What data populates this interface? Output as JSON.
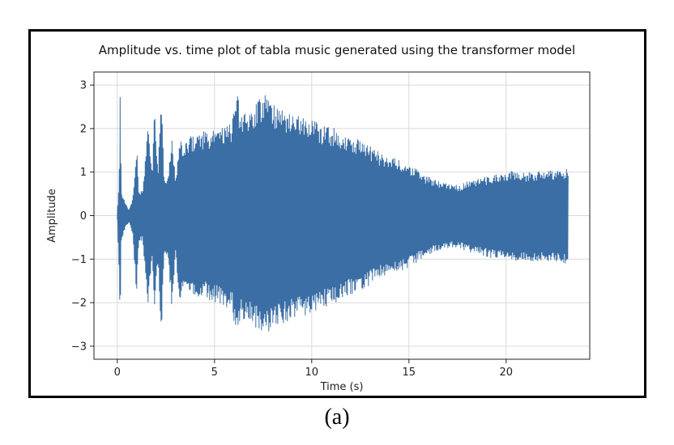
{
  "figure": {
    "caption": "(a)"
  },
  "chart_data": {
    "type": "line",
    "title": "Amplitude vs. time plot of tabla music generated using the transformer model",
    "xlabel": "Time (s)",
    "ylabel": "Amplitude",
    "xlim": [
      -1.2,
      24.3
    ],
    "ylim": [
      -3.3,
      3.3
    ],
    "xticks": [
      0,
      5,
      10,
      15,
      20
    ],
    "yticks": [
      -3,
      -2,
      -1,
      0,
      1,
      2,
      3
    ],
    "grid": true,
    "color": "#3a6ea5",
    "series": [
      {
        "name": "",
        "x": [
          0.0,
          0.1,
          0.15,
          0.2,
          0.4,
          0.6,
          0.8,
          1.0,
          1.1,
          1.3,
          1.6,
          1.8,
          1.9,
          2.1,
          2.25,
          2.4,
          2.6,
          2.8,
          3.0,
          3.2,
          3.5,
          3.8,
          4.1,
          4.4,
          4.7,
          5.0,
          5.3,
          5.6,
          5.9,
          6.2,
          6.3,
          6.5,
          6.8,
          7.0,
          7.3,
          7.6,
          7.8,
          8.0,
          8.5,
          9.0,
          9.5,
          10.0,
          10.5,
          11.0,
          11.5,
          12.0,
          12.5,
          13.0,
          13.5,
          14.0,
          14.5,
          15.0,
          15.5,
          16.0,
          16.5,
          17.0,
          17.5,
          18.0,
          18.5,
          19.0,
          19.5,
          20.0,
          20.5,
          21.0,
          21.5,
          22.0,
          22.5,
          23.0,
          23.2
        ],
        "upper": [
          0.1,
          1.0,
          3.0,
          0.6,
          0.3,
          0.15,
          0.45,
          1.6,
          0.6,
          0.55,
          2.2,
          0.9,
          2.55,
          1.1,
          3.0,
          1.0,
          0.85,
          1.95,
          0.8,
          1.8,
          1.7,
          1.85,
          1.85,
          1.95,
          1.95,
          2.0,
          2.0,
          2.05,
          2.15,
          3.0,
          2.35,
          2.4,
          2.45,
          2.5,
          2.7,
          2.8,
          2.65,
          2.55,
          2.45,
          2.35,
          2.25,
          2.2,
          2.1,
          2.05,
          1.95,
          1.85,
          1.75,
          1.6,
          1.45,
          1.4,
          1.3,
          1.2,
          1.05,
          0.9,
          0.8,
          0.75,
          0.7,
          0.8,
          0.85,
          0.9,
          0.95,
          1.0,
          1.05,
          1.0,
          1.0,
          1.05,
          1.05,
          1.05,
          1.1
        ],
        "lower": [
          -0.1,
          -1.5,
          -3.0,
          -0.7,
          -0.3,
          -0.15,
          -0.5,
          -1.9,
          -0.6,
          -0.6,
          -2.1,
          -0.9,
          -2.3,
          -1.1,
          -3.0,
          -1.05,
          -0.9,
          -2.1,
          -0.85,
          -2.0,
          -1.8,
          -1.8,
          -1.85,
          -1.9,
          -1.95,
          -2.0,
          -2.05,
          -2.1,
          -2.2,
          -3.05,
          -2.4,
          -2.45,
          -2.5,
          -2.55,
          -2.7,
          -2.8,
          -2.7,
          -2.6,
          -2.5,
          -2.45,
          -2.35,
          -2.25,
          -2.15,
          -2.05,
          -1.95,
          -1.85,
          -1.75,
          -1.6,
          -1.45,
          -1.4,
          -1.3,
          -1.2,
          -1.05,
          -0.95,
          -0.8,
          -0.75,
          -0.75,
          -0.85,
          -0.9,
          -0.95,
          -1.0,
          -1.0,
          -1.05,
          -1.05,
          -1.05,
          -1.05,
          -1.05,
          -1.1,
          -1.1
        ]
      }
    ]
  }
}
